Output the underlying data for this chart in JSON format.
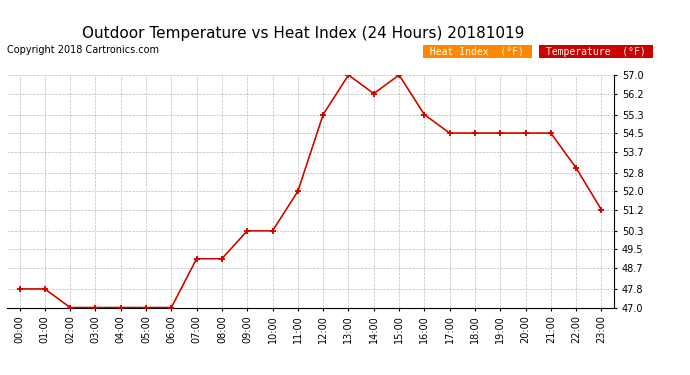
{
  "title": "Outdoor Temperature vs Heat Index (24 Hours) 20181019",
  "copyright": "Copyright 2018 Cartronics.com",
  "hours": [
    "00:00",
    "01:00",
    "02:00",
    "03:00",
    "04:00",
    "05:00",
    "06:00",
    "07:00",
    "08:00",
    "09:00",
    "10:00",
    "11:00",
    "12:00",
    "13:00",
    "14:00",
    "15:00",
    "16:00",
    "17:00",
    "18:00",
    "19:00",
    "20:00",
    "21:00",
    "22:00",
    "23:00"
  ],
  "temperature": [
    47.8,
    47.8,
    47.0,
    47.0,
    47.0,
    47.0,
    47.0,
    49.1,
    49.1,
    50.3,
    50.3,
    52.0,
    55.3,
    57.0,
    56.2,
    57.0,
    55.3,
    54.5,
    54.5,
    54.5,
    54.5,
    54.5,
    53.0,
    51.2
  ],
  "heat_index": [
    47.8,
    47.8,
    47.0,
    47.0,
    47.0,
    47.0,
    47.0,
    49.1,
    49.1,
    50.3,
    50.3,
    52.0,
    55.3,
    57.0,
    56.2,
    57.0,
    55.3,
    54.5,
    54.5,
    54.5,
    54.5,
    54.5,
    53.0,
    51.2
  ],
  "temp_color": "#cc0000",
  "heat_index_color": "#ff6600",
  "ylim_min": 47.0,
  "ylim_max": 57.0,
  "yticks": [
    47.0,
    47.8,
    48.7,
    49.5,
    50.3,
    51.2,
    52.0,
    52.8,
    53.7,
    54.5,
    55.3,
    56.2,
    57.0
  ],
  "background_color": "#ffffff",
  "grid_color": "#aaaaaa",
  "title_fontsize": 11,
  "copyright_fontsize": 7,
  "legend_heat_index_bg": "#ff8800",
  "legend_temp_bg": "#cc0000",
  "legend_text_color": "#ffffff"
}
